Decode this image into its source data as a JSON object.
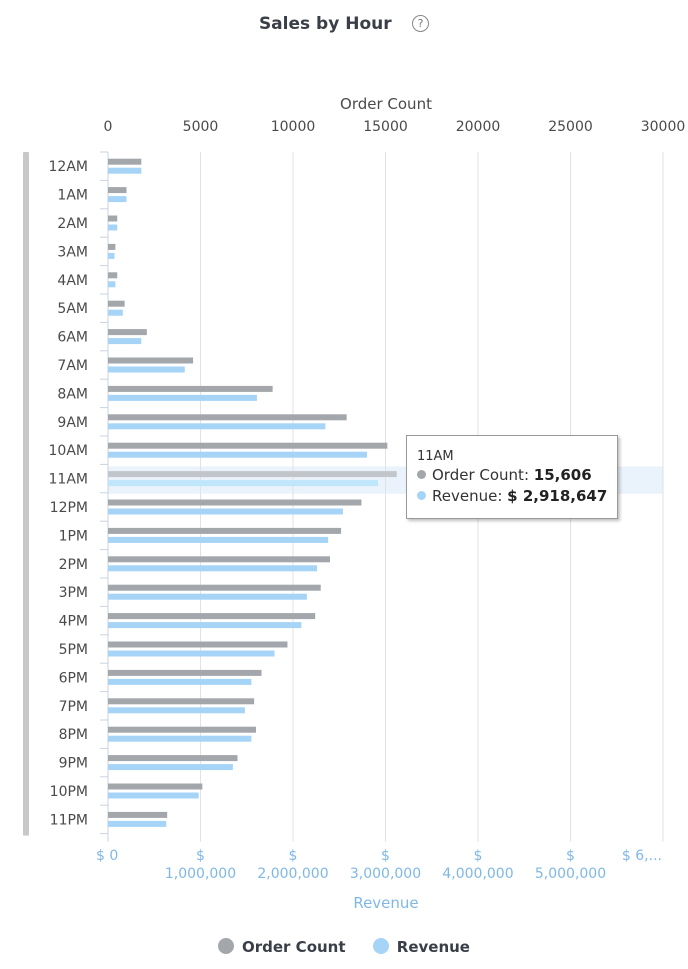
{
  "header": {
    "title": "Sales by Hour",
    "help_icon": "?"
  },
  "colors": {
    "order_count": "#a3a6ab",
    "revenue": "#a6d4f7",
    "revenue_axis": "#7fb8e6",
    "highlight": "#eaf3fb",
    "scrollbar": "#c8c8c8"
  },
  "chart_data": {
    "type": "bar",
    "orientation": "horizontal",
    "categories": [
      "12AM",
      "1AM",
      "2AM",
      "3AM",
      "4AM",
      "5AM",
      "6AM",
      "7AM",
      "8AM",
      "9AM",
      "10AM",
      "11AM",
      "12PM",
      "1PM",
      "2PM",
      "3PM",
      "4PM",
      "5PM",
      "6PM",
      "7PM",
      "8PM",
      "9PM",
      "10PM",
      "11PM"
    ],
    "series": [
      {
        "name": "Order Count",
        "axis": "top",
        "values": [
          1800,
          1000,
          500,
          400,
          500,
          900,
          2100,
          4600,
          8900,
          12900,
          15100,
          15606,
          13700,
          12600,
          12000,
          11500,
          11200,
          9700,
          8300,
          7900,
          8000,
          7000,
          5100,
          3200
        ]
      },
      {
        "name": "Revenue",
        "axis": "bottom",
        "values": [
          360000,
          200000,
          100000,
          70000,
          80000,
          160000,
          360000,
          830000,
          1610000,
          2350000,
          2800000,
          2918647,
          2540000,
          2380000,
          2260000,
          2150000,
          2090000,
          1800000,
          1550000,
          1480000,
          1550000,
          1350000,
          980000,
          630000
        ]
      }
    ],
    "top_axis": {
      "title": "Order Count",
      "min": 0,
      "max": 30000,
      "ticks": [
        "0",
        "5000",
        "10000",
        "15000",
        "20000",
        "25000",
        "30000"
      ]
    },
    "bottom_axis": {
      "title": "Revenue",
      "min": 0,
      "max": 6000000,
      "ticks": [
        {
          "line1": "$ 0",
          "line2": ""
        },
        {
          "line1": "$",
          "line2": "1,000,000"
        },
        {
          "line1": "$",
          "line2": "2,000,000"
        },
        {
          "line1": "$",
          "line2": "3,000,000"
        },
        {
          "line1": "$",
          "line2": "4,000,000"
        },
        {
          "line1": "$",
          "line2": "5,000,000"
        },
        {
          "line1": "$ 6,...",
          "line2": ""
        }
      ]
    },
    "grid": true,
    "legend": "bottom-center",
    "highlighted_category": "11AM"
  },
  "tooltip": {
    "category": "11AM",
    "rows": [
      {
        "label": "Order Count:",
        "value": "15,606"
      },
      {
        "label": "Revenue:",
        "value": "$ 2,918,647"
      }
    ]
  },
  "legend": {
    "items": [
      "Order Count",
      "Revenue"
    ]
  }
}
